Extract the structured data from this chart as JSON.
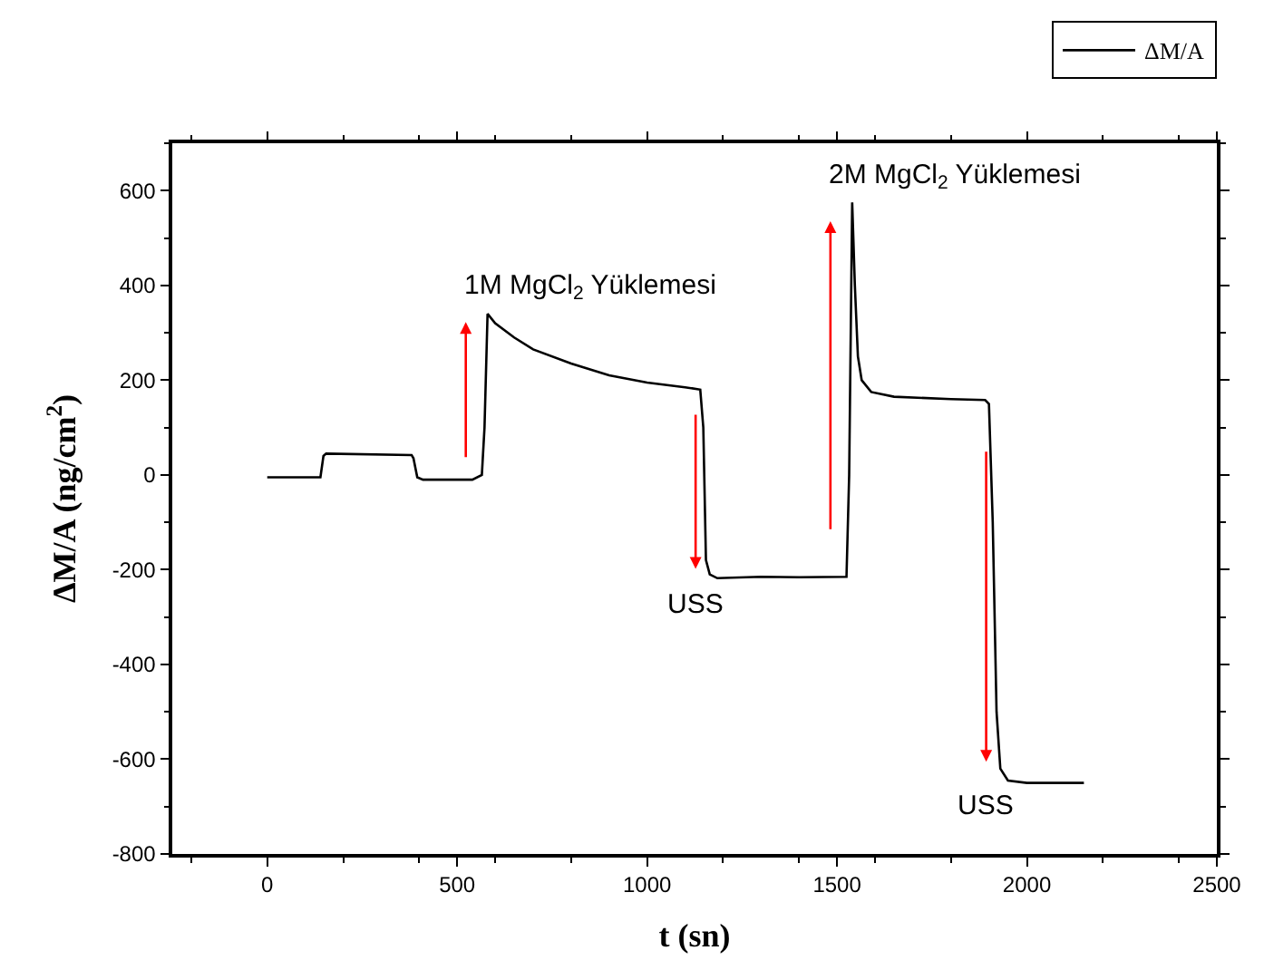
{
  "chart_data": {
    "type": "line",
    "xlabel": "t (sn)",
    "ylabel": "ΔM/A (ng/cm$^{2}$)",
    "xlim": [
      -250,
      2500
    ],
    "xticks": [
      0,
      500,
      1000,
      1500,
      2000,
      2500
    ],
    "ylim": [
      -800,
      700
    ],
    "yticks": [
      -800,
      -600,
      -400,
      -200,
      0,
      200,
      400,
      600
    ],
    "legend": "top right",
    "marker": "none",
    "line_style": "solid",
    "series": [
      {
        "name": "ΔM/A",
        "color": "#000000",
        "x": [
          0,
          140,
          148,
          155,
          380,
          385,
          395,
          410,
          540,
          565,
          572,
          580,
          600,
          650,
          700,
          800,
          900,
          1000,
          1100,
          1140,
          1148,
          1155,
          1165,
          1185,
          1300,
          1400,
          1525,
          1532,
          1540,
          1547,
          1555,
          1565,
          1590,
          1650,
          1800,
          1890,
          1900,
          1910,
          1920,
          1930,
          1950,
          2000,
          2150
        ],
        "values": [
          -5,
          -5,
          40,
          45,
          42,
          35,
          -5,
          -10,
          -10,
          0,
          100,
          340,
          320,
          290,
          265,
          235,
          210,
          195,
          185,
          180,
          100,
          -180,
          -210,
          -218,
          -215,
          -216,
          -215,
          0,
          575,
          400,
          250,
          200,
          175,
          165,
          160,
          158,
          150,
          -100,
          -500,
          -620,
          -645,
          -650,
          -650
        ]
      }
    ],
    "annotations": [
      {
        "text": "1M MgCl$_{2}$ Yüklemesi",
        "x": 580,
        "y": 340
      },
      {
        "text": "USS",
        "x": 1185,
        "y": -218
      },
      {
        "text": "2M MgCl$_{2}$ Yüklemesi",
        "x": 1540,
        "y": 575
      },
      {
        "text": "USS",
        "x": 1950,
        "y": -645
      }
    ]
  }
}
